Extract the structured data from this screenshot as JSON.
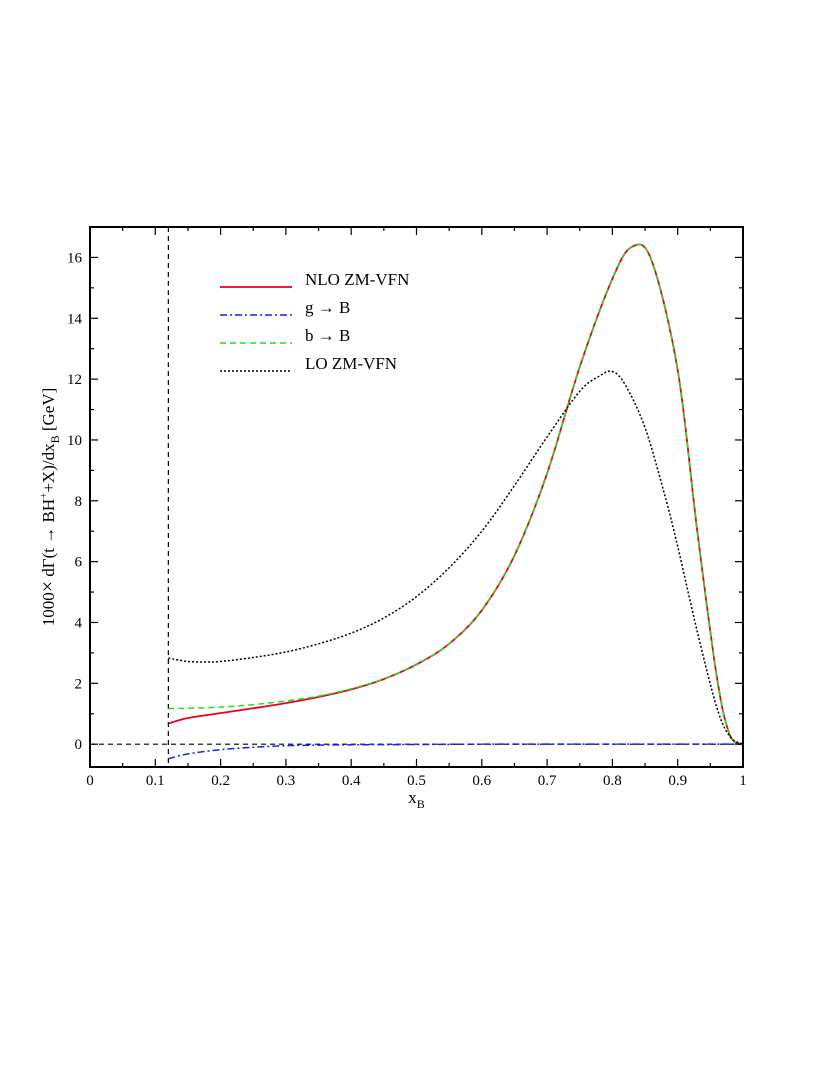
{
  "chart_data": {
    "type": "line",
    "title": "",
    "xlabel": "x",
    "xlabel_sub": "B",
    "ylabel_parts": [
      "1000",
      "×",
      " dΓ(t ",
      "→",
      " BH",
      "+",
      "+X)/dx",
      "B",
      "  [GeV]"
    ],
    "xlim": [
      0,
      1
    ],
    "ylim": [
      -0.75,
      17
    ],
    "xticks": [
      0,
      0.1,
      0.2,
      0.3,
      0.4,
      0.5,
      0.6,
      0.7,
      0.8,
      0.9,
      1
    ],
    "xtick_labels": [
      "0",
      "0.1",
      "0.2",
      "0.3",
      "0.4",
      "0.5",
      "0.6",
      "0.7",
      "0.8",
      "0.9",
      "1"
    ],
    "yticks": [
      0,
      2,
      4,
      6,
      8,
      10,
      12,
      14,
      16
    ],
    "ytick_labels": [
      "0",
      "2",
      "4",
      "6",
      "8",
      "10",
      "12",
      "14",
      "16"
    ],
    "grid": false,
    "legend_position": "top-left",
    "reference_lines": [
      {
        "orientation": "vertical",
        "x": 0.12,
        "style": "dashed",
        "color": "#000000"
      },
      {
        "orientation": "horizontal",
        "y": 0,
        "style": "dashed",
        "color": "#000000"
      }
    ],
    "series": [
      {
        "name": "NLO  ZM-VFN",
        "color": "#e8001c",
        "style": "solid",
        "x": [
          0.12,
          0.15,
          0.2,
          0.25,
          0.3,
          0.35,
          0.4,
          0.45,
          0.5,
          0.55,
          0.6,
          0.65,
          0.7,
          0.75,
          0.8,
          0.83,
          0.86,
          0.9,
          0.93,
          0.96,
          0.98,
          1.0
        ],
        "y": [
          0.68,
          0.86,
          1.02,
          1.18,
          1.35,
          1.55,
          1.8,
          2.14,
          2.62,
          3.3,
          4.4,
          6.2,
          8.9,
          12.4,
          15.3,
          16.35,
          15.9,
          12.3,
          7.0,
          2.2,
          0.3,
          0.0
        ]
      },
      {
        "name": "g → B",
        "color": "#1a1aff",
        "style": "dashdot",
        "x": [
          0.12,
          0.15,
          0.2,
          0.25,
          0.3,
          0.35,
          0.4,
          0.5,
          0.6,
          0.7,
          0.8,
          0.9,
          1.0
        ],
        "y": [
          -0.48,
          -0.32,
          -0.18,
          -0.1,
          -0.05,
          -0.03,
          -0.02,
          -0.01,
          0.0,
          0.0,
          0.0,
          0.0,
          0.0
        ]
      },
      {
        "name": "b → B",
        "color": "#22dd22",
        "style": "dashed",
        "x": [
          0.12,
          0.15,
          0.2,
          0.25,
          0.3,
          0.35,
          0.4,
          0.45,
          0.5,
          0.55,
          0.6,
          0.65,
          0.7,
          0.75,
          0.8,
          0.83,
          0.86,
          0.9,
          0.93,
          0.96,
          0.98,
          1.0
        ],
        "y": [
          1.17,
          1.18,
          1.22,
          1.3,
          1.42,
          1.58,
          1.82,
          2.15,
          2.63,
          3.3,
          4.4,
          6.2,
          8.9,
          12.4,
          15.3,
          16.35,
          15.9,
          12.3,
          7.0,
          2.2,
          0.3,
          0.0
        ]
      },
      {
        "name": "LO  ZM-VFN",
        "color": "#000000",
        "style": "dotted",
        "x": [
          0.12,
          0.15,
          0.18,
          0.2,
          0.25,
          0.3,
          0.35,
          0.4,
          0.45,
          0.5,
          0.55,
          0.6,
          0.65,
          0.7,
          0.75,
          0.78,
          0.8,
          0.82,
          0.85,
          0.88,
          0.9,
          0.93,
          0.96,
          0.98,
          1.0
        ],
        "y": [
          2.83,
          2.72,
          2.7,
          2.72,
          2.85,
          3.03,
          3.3,
          3.65,
          4.15,
          4.85,
          5.8,
          7.0,
          8.5,
          10.1,
          11.6,
          12.1,
          12.25,
          11.8,
          10.4,
          8.2,
          6.5,
          3.7,
          1.2,
          0.25,
          0.0
        ]
      }
    ]
  }
}
